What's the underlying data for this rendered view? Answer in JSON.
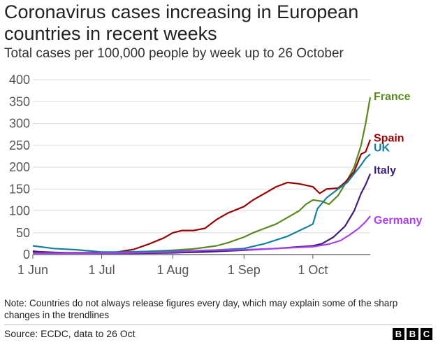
{
  "title": "Coronavirus cases increasing in European countries in recent weeks",
  "subtitle": "Total cases per 100,000 people by week up to 26 October",
  "note": "Note: Countries do not always release figures every day, which may explain some of the sharp changes in the trendlines",
  "source": "Source: ECDC, data to 26 Oct",
  "logo": {
    "letters": [
      "B",
      "B",
      "C"
    ]
  },
  "chart_data": {
    "type": "line",
    "title": "Coronavirus cases increasing in European countries in recent weeks",
    "subtitle": "Total cases per 100,000 people by week up to 26 October",
    "xlabel": "",
    "ylabel": "",
    "ylim": [
      0,
      400
    ],
    "xlim": [
      "2020-06-01",
      "2020-10-26"
    ],
    "yticks": [
      0,
      50,
      100,
      150,
      200,
      250,
      300,
      350,
      400
    ],
    "yticklabels": [
      "0",
      "50",
      "100",
      "150",
      "200",
      "250",
      "300",
      "350",
      "400"
    ],
    "xticks": [
      "2020-06-01",
      "2020-07-01",
      "2020-08-01",
      "2020-09-01",
      "2020-10-01"
    ],
    "xticklabels": [
      "1 Jun",
      "1 Jul",
      "1 Aug",
      "1 Sep",
      "1 Oct"
    ],
    "grid": "horizontal",
    "legend": "direct labels at line ends",
    "series": [
      {
        "name": "France",
        "color": "#588a20",
        "points": [
          [
            "2020-06-01",
            5
          ],
          [
            "2020-06-10",
            4
          ],
          [
            "2020-06-20",
            4
          ],
          [
            "2020-07-01",
            4
          ],
          [
            "2020-07-10",
            5
          ],
          [
            "2020-07-20",
            7
          ],
          [
            "2020-08-01",
            10
          ],
          [
            "2020-08-10",
            13
          ],
          [
            "2020-08-20",
            20
          ],
          [
            "2020-08-25",
            27
          ],
          [
            "2020-09-01",
            40
          ],
          [
            "2020-09-05",
            50
          ],
          [
            "2020-09-10",
            60
          ],
          [
            "2020-09-15",
            70
          ],
          [
            "2020-09-20",
            85
          ],
          [
            "2020-09-25",
            100
          ],
          [
            "2020-09-28",
            115
          ],
          [
            "2020-10-01",
            125
          ],
          [
            "2020-10-05",
            122
          ],
          [
            "2020-10-08",
            115
          ],
          [
            "2020-10-12",
            135
          ],
          [
            "2020-10-16",
            170
          ],
          [
            "2020-10-19",
            200
          ],
          [
            "2020-10-22",
            250
          ],
          [
            "2020-10-24",
            300
          ],
          [
            "2020-10-26",
            360
          ]
        ]
      },
      {
        "name": "Spain",
        "color": "#990000",
        "points": [
          [
            "2020-06-01",
            8
          ],
          [
            "2020-06-05",
            5
          ],
          [
            "2020-06-15",
            4
          ],
          [
            "2020-07-01",
            4
          ],
          [
            "2020-07-08",
            6
          ],
          [
            "2020-07-15",
            12
          ],
          [
            "2020-07-22",
            25
          ],
          [
            "2020-07-28",
            38
          ],
          [
            "2020-08-01",
            50
          ],
          [
            "2020-08-05",
            55
          ],
          [
            "2020-08-10",
            55
          ],
          [
            "2020-08-15",
            60
          ],
          [
            "2020-08-20",
            80
          ],
          [
            "2020-08-25",
            95
          ],
          [
            "2020-09-01",
            110
          ],
          [
            "2020-09-05",
            125
          ],
          [
            "2020-09-10",
            140
          ],
          [
            "2020-09-15",
            155
          ],
          [
            "2020-09-20",
            165
          ],
          [
            "2020-09-25",
            162
          ],
          [
            "2020-10-01",
            155
          ],
          [
            "2020-10-04",
            140
          ],
          [
            "2020-10-07",
            150
          ],
          [
            "2020-10-12",
            152
          ],
          [
            "2020-10-15",
            165
          ],
          [
            "2020-10-19",
            190
          ],
          [
            "2020-10-22",
            230
          ],
          [
            "2020-10-24",
            235
          ],
          [
            "2020-10-26",
            263
          ]
        ]
      },
      {
        "name": "UK",
        "color": "#1380a1",
        "points": [
          [
            "2020-06-01",
            20
          ],
          [
            "2020-06-10",
            14
          ],
          [
            "2020-06-20",
            11
          ],
          [
            "2020-07-01",
            6
          ],
          [
            "2020-07-10",
            6
          ],
          [
            "2020-07-20",
            7
          ],
          [
            "2020-08-01",
            8
          ],
          [
            "2020-08-15",
            9
          ],
          [
            "2020-09-01",
            14
          ],
          [
            "2020-09-10",
            25
          ],
          [
            "2020-09-20",
            42
          ],
          [
            "2020-09-28",
            62
          ],
          [
            "2020-10-01",
            70
          ],
          [
            "2020-10-03",
            105
          ],
          [
            "2020-10-07",
            130
          ],
          [
            "2020-10-12",
            150
          ],
          [
            "2020-10-16",
            165
          ],
          [
            "2020-10-19",
            185
          ],
          [
            "2020-10-22",
            205
          ],
          [
            "2020-10-24",
            220
          ],
          [
            "2020-10-26",
            230
          ]
        ]
      },
      {
        "name": "Italy",
        "color": "#3e1e7a",
        "points": [
          [
            "2020-06-01",
            7
          ],
          [
            "2020-06-15",
            4
          ],
          [
            "2020-07-01",
            3
          ],
          [
            "2020-07-15",
            3
          ],
          [
            "2020-08-01",
            4
          ],
          [
            "2020-08-15",
            6
          ],
          [
            "2020-09-01",
            10
          ],
          [
            "2020-09-15",
            14
          ],
          [
            "2020-10-01",
            20
          ],
          [
            "2020-10-05",
            25
          ],
          [
            "2020-10-10",
            40
          ],
          [
            "2020-10-15",
            65
          ],
          [
            "2020-10-19",
            100
          ],
          [
            "2020-10-22",
            140
          ],
          [
            "2020-10-24",
            160
          ],
          [
            "2020-10-26",
            185
          ]
        ]
      },
      {
        "name": "Germany",
        "color": "#a93ef0",
        "points": [
          [
            "2020-06-01",
            3
          ],
          [
            "2020-06-15",
            3
          ],
          [
            "2020-07-01",
            3
          ],
          [
            "2020-07-15",
            4
          ],
          [
            "2020-08-01",
            6
          ],
          [
            "2020-08-15",
            10
          ],
          [
            "2020-09-01",
            11
          ],
          [
            "2020-09-15",
            14
          ],
          [
            "2020-10-01",
            18
          ],
          [
            "2020-10-08",
            24
          ],
          [
            "2020-10-13",
            32
          ],
          [
            "2020-10-17",
            45
          ],
          [
            "2020-10-21",
            60
          ],
          [
            "2020-10-24",
            75
          ],
          [
            "2020-10-26",
            88
          ]
        ]
      }
    ]
  }
}
